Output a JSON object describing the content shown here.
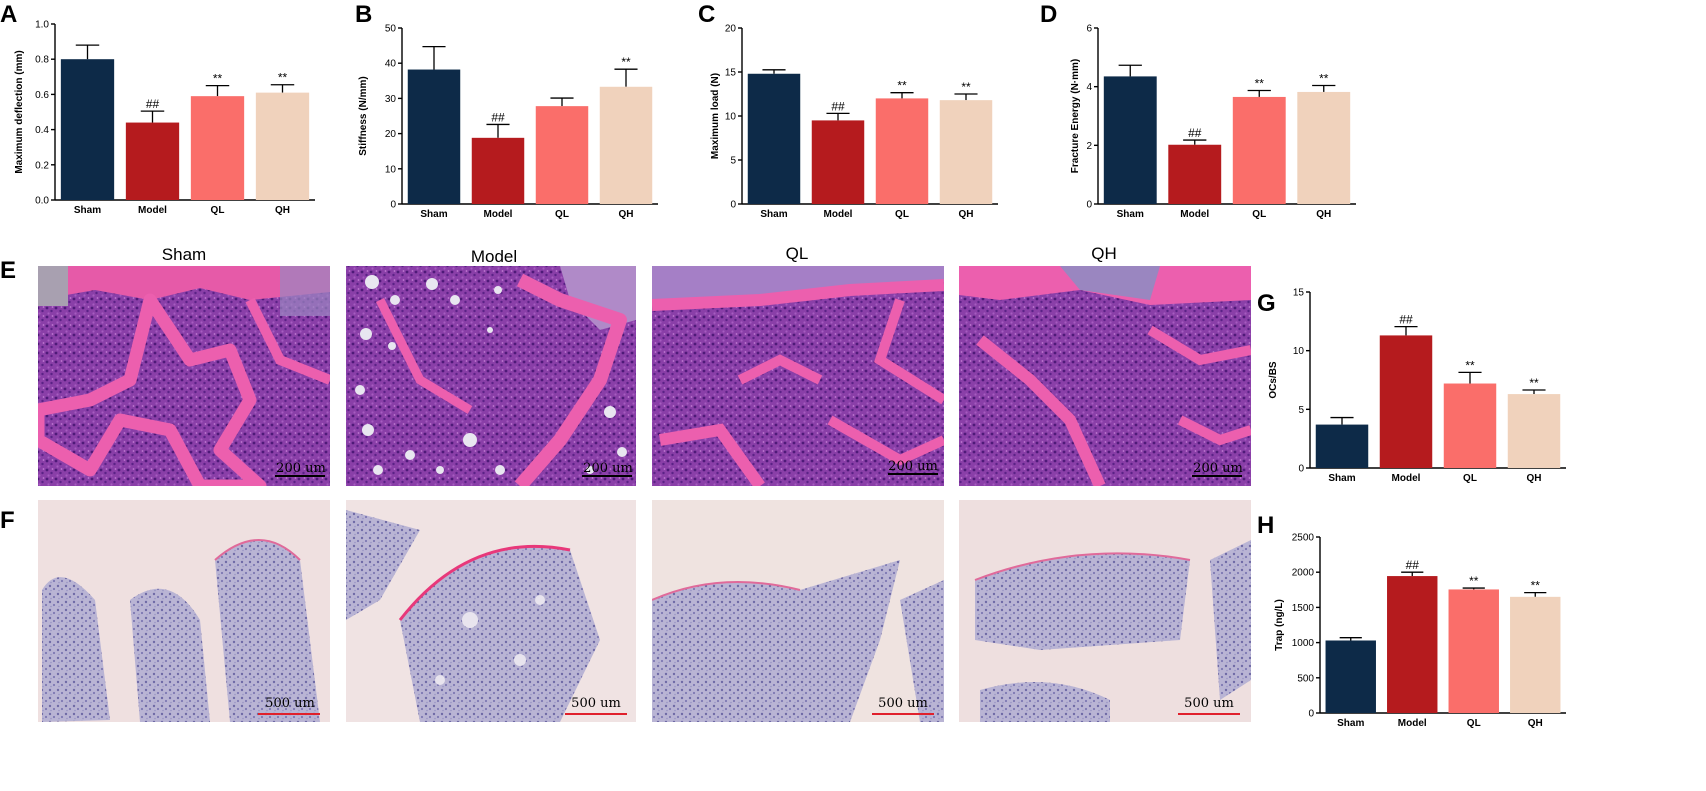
{
  "panel_letters": [
    "A",
    "B",
    "C",
    "D",
    "E",
    "F",
    "G",
    "H"
  ],
  "colors": {
    "Sham": "#0d2a48",
    "Model": "#b51b1e",
    "QL": "#fa6e6a",
    "QH": "#f0d2bc"
  },
  "chart_data": [
    {
      "panel": "A",
      "type": "bar",
      "categories": [
        "Sham",
        "Model",
        "QL",
        "QH"
      ],
      "values": [
        0.8,
        0.44,
        0.59,
        0.61
      ],
      "errors": [
        0.08,
        0.065,
        0.06,
        0.045
      ],
      "sig": [
        "",
        "##",
        "**",
        "**"
      ],
      "ylabel": "Maximum deflection (mm)",
      "ylim": [
        0,
        1.0
      ],
      "yticks": [
        "0.0",
        "0.2",
        "0.4",
        "0.6",
        "0.8",
        "1.0"
      ]
    },
    {
      "panel": "B",
      "type": "bar",
      "categories": [
        "Sham",
        "Model",
        "QL",
        "QH"
      ],
      "values": [
        38.2,
        18.8,
        27.8,
        33.3
      ],
      "errors": [
        6.5,
        3.8,
        2.3,
        5.0
      ],
      "sig": [
        "",
        "##",
        "",
        "**"
      ],
      "ylabel": "Stiffness (N/mm)",
      "ylim": [
        0,
        50
      ],
      "yticks": [
        "0",
        "10",
        "20",
        "30",
        "40",
        "50"
      ]
    },
    {
      "panel": "C",
      "type": "bar",
      "categories": [
        "Sham",
        "Model",
        "QL",
        "QH"
      ],
      "values": [
        14.8,
        9.5,
        12.0,
        11.8
      ],
      "errors": [
        0.45,
        0.8,
        0.65,
        0.7
      ],
      "sig": [
        "",
        "##",
        "**",
        "**"
      ],
      "ylabel": "Maximum load (N)",
      "ylim": [
        0,
        20
      ],
      "yticks": [
        "0",
        "5",
        "10",
        "15",
        "20"
      ]
    },
    {
      "panel": "D",
      "type": "bar",
      "categories": [
        "Sham",
        "Model",
        "QL",
        "QH"
      ],
      "values": [
        4.35,
        2.02,
        3.65,
        3.82
      ],
      "errors": [
        0.38,
        0.16,
        0.22,
        0.22
      ],
      "sig": [
        "",
        "##",
        "**",
        "**"
      ],
      "ylabel": "Fracture Energy (N·mm)",
      "ylim": [
        0,
        6
      ],
      "yticks": [
        "0",
        "2",
        "4",
        "6"
      ]
    },
    {
      "panel": "G",
      "type": "bar",
      "categories": [
        "Sham",
        "Model",
        "QL",
        "QH"
      ],
      "values": [
        3.7,
        11.3,
        7.2,
        6.3
      ],
      "errors": [
        0.6,
        0.75,
        0.95,
        0.35
      ],
      "sig": [
        "",
        "##",
        "**",
        "**"
      ],
      "ylabel": "OCs/BS",
      "ylim": [
        0,
        15
      ],
      "yticks": [
        "0",
        "5",
        "10",
        "15"
      ]
    },
    {
      "panel": "H",
      "type": "bar",
      "categories": [
        "Sham",
        "Model",
        "QL",
        "QH"
      ],
      "values": [
        1030,
        1945,
        1755,
        1650
      ],
      "errors": [
        40,
        55,
        20,
        60
      ],
      "sig": [
        "",
        "##",
        "**",
        "**"
      ],
      "ylabel": "Trap  (ng/L)",
      "ylim": [
        0,
        2500
      ],
      "yticks": [
        "0",
        "500",
        "1000",
        "1500",
        "2000",
        "2500"
      ]
    }
  ],
  "micrographs": {
    "he_titles": [
      "Sham",
      "Model",
      "QL",
      "QH"
    ],
    "he_scale": "200 um",
    "trap_scale": "500 um"
  }
}
